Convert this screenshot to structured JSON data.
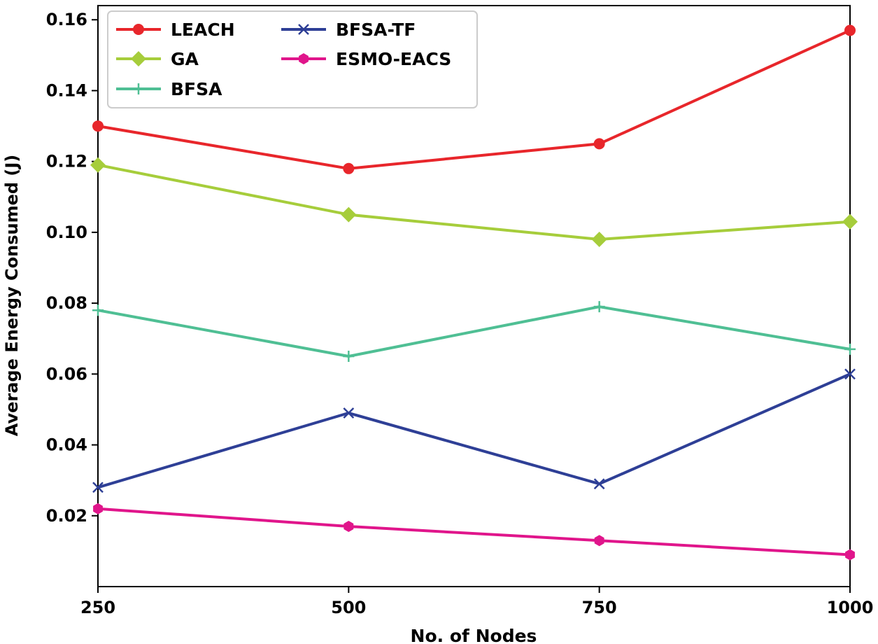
{
  "chart_data": {
    "type": "line",
    "title": "",
    "xlabel": "No. of Nodes",
    "ylabel": "Average Energy Consumed (J)",
    "x": [
      250,
      500,
      750,
      1000
    ],
    "x_tick_labels": [
      "250",
      "500",
      "750",
      "1000"
    ],
    "xlim": [
      250,
      1000
    ],
    "ylim": [
      0.0,
      0.164
    ],
    "y_ticks": [
      0.02,
      0.04,
      0.06,
      0.08,
      0.1,
      0.12,
      0.14,
      0.16
    ],
    "y_tick_labels": [
      "0.02",
      "0.04",
      "0.06",
      "0.08",
      "0.10",
      "0.12",
      "0.14",
      "0.16"
    ],
    "grid": false,
    "legend_position": "top-left",
    "series": [
      {
        "name": "LEACH",
        "color": "#e8262b",
        "marker": "circle",
        "values": [
          0.13,
          0.118,
          0.125,
          0.157
        ]
      },
      {
        "name": "GA",
        "color": "#a6cd3b",
        "marker": "diamond",
        "values": [
          0.119,
          0.105,
          0.098,
          0.103
        ]
      },
      {
        "name": "BFSA",
        "color": "#4fbf94",
        "marker": "plus",
        "values": [
          0.078,
          0.065,
          0.079,
          0.067
        ]
      },
      {
        "name": "BFSA-TF",
        "color": "#2e3f96",
        "marker": "x",
        "values": [
          0.028,
          0.049,
          0.029,
          0.06
        ]
      },
      {
        "name": "ESMO-EACS",
        "color": "#e0158b",
        "marker": "hexagon",
        "values": [
          0.022,
          0.017,
          0.013,
          0.009
        ]
      }
    ]
  }
}
